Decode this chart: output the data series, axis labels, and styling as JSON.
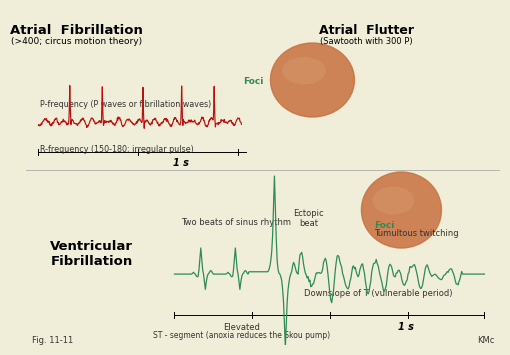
{
  "bg_color": "#f0eed8",
  "title_af": "Atrial  Fibrillation",
  "subtitle_af": "(>400; circus motion theory)",
  "title_flutter": "Atrial  Flutter",
  "subtitle_flutter": "(Sawtooth with 300 P)",
  "title_vf": "Ventricular\nFibrillation",
  "label_p_freq": "P-frequency (P waves or fibrillation waves)",
  "label_r_freq": "R-frequency (150-180; irregular pulse)",
  "label_1s_top": "1 s",
  "label_1s_bot": "1 s",
  "label_two_beats": "Two beats of sinus rhythm",
  "label_ectopic": "Ectopic\nbeat",
  "label_foci_top": "Foci",
  "label_foci_bot": "Foci",
  "label_tumultous": "Tumultous twitching",
  "label_downslope": "Downslope of T (vulnerable period)",
  "label_elevated": "Elevated\nST - segment (anoxia reduces the Skou pump)",
  "label_fig": "Fig. 11-11",
  "label_kmc": "KMc",
  "ecg_color_af": "#bb1111",
  "ecg_color_vf": "#2e8b57",
  "text_color": "#333333",
  "foci_color": "#2e8b57",
  "heart_color1": "#c87040",
  "heart_color2": "#d4956a",
  "sep_line_color": "#aaaaaa"
}
